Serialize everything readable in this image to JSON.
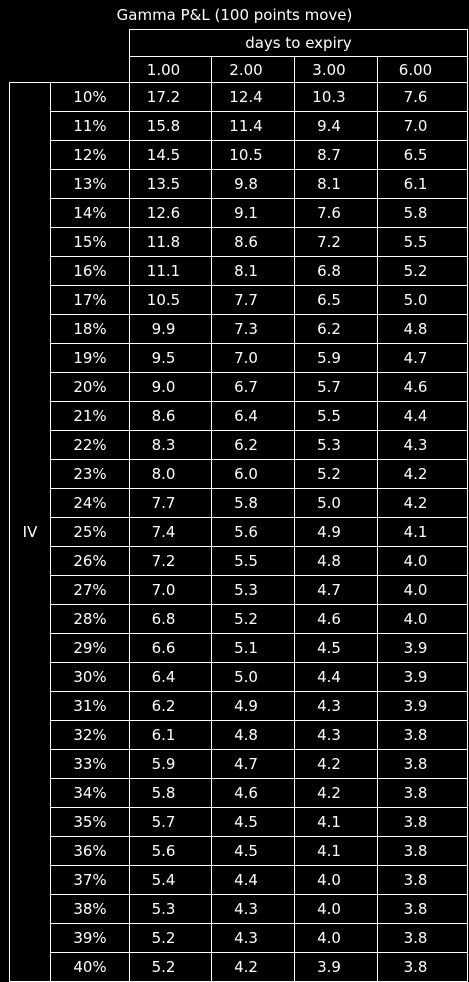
{
  "title": "Gamma P&L (100 points move)",
  "column_group_label": "days to expiry",
  "row_group_label": "IV",
  "columns": [
    "1.00",
    "2.00",
    "3.00",
    "6.00"
  ],
  "rows": [
    {
      "iv": "10%",
      "values": [
        "17.2",
        "12.4",
        "10.3",
        "7.6"
      ]
    },
    {
      "iv": "11%",
      "values": [
        "15.8",
        "11.4",
        "9.4",
        "7.0"
      ]
    },
    {
      "iv": "12%",
      "values": [
        "14.5",
        "10.5",
        "8.7",
        "6.5"
      ]
    },
    {
      "iv": "13%",
      "values": [
        "13.5",
        "9.8",
        "8.1",
        "6.1"
      ]
    },
    {
      "iv": "14%",
      "values": [
        "12.6",
        "9.1",
        "7.6",
        "5.8"
      ]
    },
    {
      "iv": "15%",
      "values": [
        "11.8",
        "8.6",
        "7.2",
        "5.5"
      ]
    },
    {
      "iv": "16%",
      "values": [
        "11.1",
        "8.1",
        "6.8",
        "5.2"
      ]
    },
    {
      "iv": "17%",
      "values": [
        "10.5",
        "7.7",
        "6.5",
        "5.0"
      ]
    },
    {
      "iv": "18%",
      "values": [
        "9.9",
        "7.3",
        "6.2",
        "4.8"
      ]
    },
    {
      "iv": "19%",
      "values": [
        "9.5",
        "7.0",
        "5.9",
        "4.7"
      ]
    },
    {
      "iv": "20%",
      "values": [
        "9.0",
        "6.7",
        "5.7",
        "4.6"
      ]
    },
    {
      "iv": "21%",
      "values": [
        "8.6",
        "6.4",
        "5.5",
        "4.4"
      ]
    },
    {
      "iv": "22%",
      "values": [
        "8.3",
        "6.2",
        "5.3",
        "4.3"
      ]
    },
    {
      "iv": "23%",
      "values": [
        "8.0",
        "6.0",
        "5.2",
        "4.2"
      ]
    },
    {
      "iv": "24%",
      "values": [
        "7.7",
        "5.8",
        "5.0",
        "4.2"
      ]
    },
    {
      "iv": "25%",
      "values": [
        "7.4",
        "5.6",
        "4.9",
        "4.1"
      ]
    },
    {
      "iv": "26%",
      "values": [
        "7.2",
        "5.5",
        "4.8",
        "4.0"
      ]
    },
    {
      "iv": "27%",
      "values": [
        "7.0",
        "5.3",
        "4.7",
        "4.0"
      ]
    },
    {
      "iv": "28%",
      "values": [
        "6.8",
        "5.2",
        "4.6",
        "4.0"
      ]
    },
    {
      "iv": "29%",
      "values": [
        "6.6",
        "5.1",
        "4.5",
        "3.9"
      ]
    },
    {
      "iv": "30%",
      "values": [
        "6.4",
        "5.0",
        "4.4",
        "3.9"
      ]
    },
    {
      "iv": "31%",
      "values": [
        "6.2",
        "4.9",
        "4.3",
        "3.9"
      ]
    },
    {
      "iv": "32%",
      "values": [
        "6.1",
        "4.8",
        "4.3",
        "3.8"
      ]
    },
    {
      "iv": "33%",
      "values": [
        "5.9",
        "4.7",
        "4.2",
        "3.8"
      ]
    },
    {
      "iv": "34%",
      "values": [
        "5.8",
        "4.6",
        "4.2",
        "3.8"
      ]
    },
    {
      "iv": "35%",
      "values": [
        "5.7",
        "4.5",
        "4.1",
        "3.8"
      ]
    },
    {
      "iv": "36%",
      "values": [
        "5.6",
        "4.5",
        "4.1",
        "3.8"
      ]
    },
    {
      "iv": "37%",
      "values": [
        "5.4",
        "4.4",
        "4.0",
        "3.8"
      ]
    },
    {
      "iv": "38%",
      "values": [
        "5.3",
        "4.3",
        "4.0",
        "3.8"
      ]
    },
    {
      "iv": "39%",
      "values": [
        "5.2",
        "4.3",
        "4.0",
        "3.8"
      ]
    },
    {
      "iv": "40%",
      "values": [
        "5.2",
        "4.2",
        "3.9",
        "3.8"
      ]
    }
  ],
  "colors": {
    "background": "#000000",
    "text": "#ffffff",
    "border": "#ffffff"
  }
}
